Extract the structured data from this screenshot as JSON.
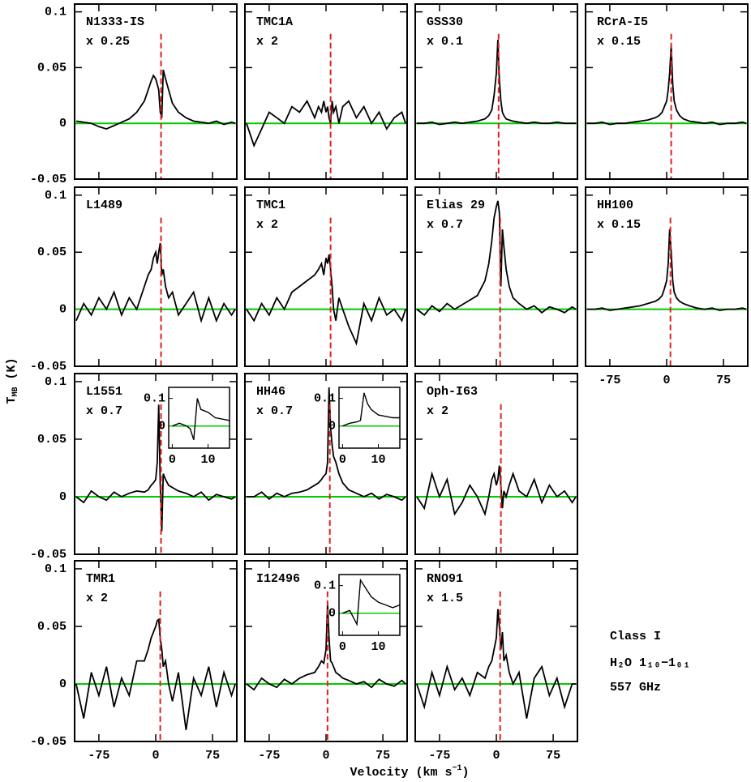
{
  "shared_axes": {
    "xlim": [
      -107,
      107
    ],
    "ylim": [
      -0.05,
      0.107
    ],
    "xticks": [
      -75,
      0,
      75
    ],
    "yticks": [
      0.1,
      0.05,
      0,
      -0.05
    ],
    "baseline_color": "#00cc00",
    "ylabel": {
      "main": "T",
      "sub": "MB",
      "unit": " (K)"
    },
    "xlabel": {
      "main": "Velocity (km s",
      "sup": "−1",
      "end": ")"
    }
  },
  "annotation": [
    "Class I",
    "H₂O 1₁₀−1₀₁",
    "557 GHz"
  ],
  "chart_data": [
    {
      "type": "line",
      "title": "N1333-IS",
      "subtitle": "x 0.25",
      "color": "#000000",
      "vline": {
        "x": 7,
        "color": "#e02020"
      },
      "x": [
        -105,
        -95,
        -85,
        -75,
        -65,
        -55,
        -45,
        -35,
        -25,
        -15,
        -10,
        -6,
        -3,
        0,
        2,
        4,
        6,
        8,
        10,
        13,
        17,
        22,
        30,
        40,
        50,
        60,
        70,
        80,
        90,
        100,
        105
      ],
      "values": [
        0.002,
        0.001,
        0.0,
        -0.003,
        -0.005,
        -0.002,
        0.001,
        0.004,
        0.01,
        0.02,
        0.03,
        0.038,
        0.043,
        0.04,
        0.035,
        0.03,
        0.01,
        0.005,
        0.048,
        0.04,
        0.03,
        0.018,
        0.01,
        0.005,
        0.002,
        0.001,
        0.0,
        0.002,
        -0.001,
        0.001,
        0.0
      ]
    },
    {
      "type": "line",
      "title": "TMC1A",
      "subtitle": "x 2",
      "color": "#000000",
      "vline": {
        "x": 6,
        "color": "#e02020"
      },
      "x": [
        -105,
        -95,
        -85,
        -75,
        -65,
        -55,
        -45,
        -35,
        -25,
        -15,
        -10,
        -6,
        -3,
        0,
        2,
        4,
        6,
        8,
        10,
        13,
        17,
        22,
        30,
        40,
        50,
        60,
        70,
        80,
        90,
        100,
        105
      ],
      "values": [
        0.0,
        -0.02,
        -0.005,
        0.01,
        0.005,
        0.0,
        0.015,
        0.01,
        0.02,
        0.005,
        0.015,
        0.01,
        0.02,
        0.01,
        0.015,
        0.005,
        0.0,
        0.02,
        0.01,
        0.015,
        0.0,
        0.015,
        0.02,
        0.005,
        0.015,
        0.0,
        0.01,
        -0.005,
        0.005,
        0.01,
        0.0
      ]
    },
    {
      "type": "line",
      "title": "GSS30",
      "subtitle": "x 0.1",
      "color": "#000000",
      "vline": {
        "x": 3,
        "color": "#e02020"
      },
      "x": [
        -105,
        -95,
        -85,
        -75,
        -65,
        -55,
        -45,
        -35,
        -25,
        -15,
        -10,
        -6,
        -3,
        0,
        2,
        4,
        6,
        8,
        10,
        13,
        17,
        22,
        30,
        40,
        50,
        60,
        70,
        80,
        90,
        100,
        105
      ],
      "values": [
        0.0,
        0.0,
        0.001,
        -0.001,
        0.0,
        0.001,
        0.0,
        0.001,
        0.002,
        0.004,
        0.007,
        0.012,
        0.025,
        0.045,
        0.075,
        0.04,
        0.02,
        0.01,
        0.007,
        0.004,
        0.003,
        0.002,
        0.001,
        0.0,
        0.001,
        0.0,
        0.0,
        0.001,
        0.0,
        0.0,
        0.0
      ]
    },
    {
      "type": "line",
      "title": "RCrA-I5",
      "subtitle": "x 0.15",
      "color": "#000000",
      "vline": {
        "x": 6,
        "color": "#e02020"
      },
      "x": [
        -105,
        -95,
        -85,
        -75,
        -65,
        -55,
        -45,
        -35,
        -25,
        -15,
        -10,
        -6,
        -3,
        0,
        2,
        4,
        6,
        8,
        10,
        13,
        17,
        22,
        30,
        40,
        50,
        60,
        70,
        80,
        90,
        100,
        105
      ],
      "values": [
        0.0,
        0.0,
        0.001,
        -0.001,
        0.0,
        0.0,
        0.001,
        0.002,
        0.003,
        0.005,
        0.007,
        0.01,
        0.015,
        0.02,
        0.03,
        0.045,
        0.07,
        0.035,
        0.02,
        0.012,
        0.007,
        0.004,
        0.002,
        0.001,
        0.0,
        0.001,
        -0.001,
        0.0,
        0.0,
        0.001,
        0.0
      ]
    },
    {
      "type": "line",
      "title": "L1489",
      "color": "#000000",
      "vline": {
        "x": 7,
        "color": "#e02020"
      },
      "x": [
        -105,
        -95,
        -85,
        -75,
        -65,
        -55,
        -45,
        -35,
        -25,
        -15,
        -10,
        -6,
        -3,
        0,
        2,
        4,
        6,
        8,
        10,
        13,
        17,
        22,
        30,
        40,
        50,
        60,
        70,
        80,
        90,
        100,
        105
      ],
      "values": [
        -0.01,
        0.005,
        -0.005,
        0.01,
        0.0,
        0.015,
        -0.005,
        0.01,
        0.0,
        0.02,
        0.03,
        0.035,
        0.045,
        0.05,
        0.04,
        0.05,
        0.058,
        0.03,
        0.035,
        0.02,
        0.01,
        0.015,
        -0.005,
        0.005,
        0.015,
        -0.01,
        0.01,
        -0.01,
        0.005,
        -0.005,
        0.0
      ]
    },
    {
      "type": "line",
      "title": "TMC1",
      "subtitle": "x 2",
      "color": "#000000",
      "vline": {
        "x": 6,
        "color": "#e02020"
      },
      "x": [
        -105,
        -95,
        -85,
        -75,
        -65,
        -55,
        -45,
        -35,
        -25,
        -15,
        -10,
        -6,
        -3,
        0,
        2,
        4,
        6,
        8,
        10,
        13,
        17,
        22,
        30,
        40,
        50,
        60,
        70,
        80,
        90,
        100,
        105
      ],
      "values": [
        0.0,
        -0.01,
        0.005,
        -0.005,
        0.01,
        0.0,
        0.015,
        0.02,
        0.025,
        0.03,
        0.035,
        0.04,
        0.03,
        0.045,
        0.04,
        0.048,
        0.035,
        0.02,
        0.0,
        -0.01,
        0.01,
        0.0,
        -0.015,
        -0.03,
        0.005,
        -0.01,
        0.01,
        -0.005,
        0.0,
        -0.01,
        0.0
      ]
    },
    {
      "type": "line",
      "title": "Elias 29",
      "subtitle": "x 0.7",
      "color": "#000000",
      "vline": {
        "x": 5,
        "color": "#e02020"
      },
      "x": [
        -105,
        -95,
        -85,
        -75,
        -65,
        -55,
        -45,
        -35,
        -25,
        -15,
        -10,
        -6,
        -3,
        0,
        2,
        4,
        6,
        8,
        10,
        13,
        17,
        22,
        30,
        40,
        50,
        60,
        70,
        80,
        90,
        100,
        105
      ],
      "values": [
        0.0,
        -0.005,
        0.003,
        -0.002,
        0.005,
        0.0,
        0.004,
        0.008,
        0.012,
        0.025,
        0.04,
        0.06,
        0.08,
        0.09,
        0.095,
        0.085,
        0.02,
        0.07,
        0.055,
        0.035,
        0.02,
        0.01,
        0.005,
        0.0,
        0.003,
        -0.003,
        0.002,
        0.0,
        -0.003,
        0.002,
        0.0
      ]
    },
    {
      "type": "line",
      "title": "HH100",
      "subtitle": "x 0.15",
      "color": "#000000",
      "vline": {
        "x": 5,
        "color": "#e02020"
      },
      "x": [
        -105,
        -95,
        -85,
        -75,
        -65,
        -55,
        -45,
        -35,
        -25,
        -15,
        -10,
        -6,
        -3,
        0,
        2,
        4,
        6,
        8,
        10,
        13,
        17,
        22,
        30,
        40,
        50,
        60,
        70,
        80,
        90,
        100,
        105
      ],
      "values": [
        0.0,
        0.0,
        0.001,
        -0.001,
        0.0,
        0.001,
        0.002,
        0.003,
        0.005,
        0.007,
        0.009,
        0.012,
        0.018,
        0.025,
        0.04,
        0.07,
        0.05,
        0.025,
        0.015,
        0.01,
        0.007,
        0.005,
        0.003,
        0.001,
        0.0,
        0.001,
        -0.001,
        0.0,
        0.0,
        0.001,
        0.0
      ]
    },
    {
      "type": "line",
      "title": "L1551",
      "subtitle": "x 0.7",
      "color": "#000000",
      "vline": {
        "x": 7,
        "color": "#e02020"
      },
      "x": [
        -105,
        -95,
        -85,
        -75,
        -65,
        -55,
        -45,
        -35,
        -25,
        -15,
        -10,
        -6,
        -3,
        0,
        2,
        4,
        6,
        8,
        10,
        13,
        17,
        22,
        30,
        40,
        50,
        60,
        70,
        80,
        90,
        100,
        105
      ],
      "values": [
        0.0,
        -0.005,
        0.005,
        0.0,
        -0.003,
        0.004,
        0.0,
        0.003,
        0.005,
        0.004,
        0.006,
        0.01,
        0.012,
        0.015,
        0.03,
        0.08,
        0.01,
        -0.03,
        0.02,
        0.015,
        0.01,
        0.008,
        0.005,
        0.003,
        0.0,
        0.004,
        -0.003,
        0.002,
        0.0,
        -0.002,
        0.0
      ],
      "inset": {
        "xlim": [
          -1,
          16
        ],
        "ylim": [
          -0.08,
          0.14
        ],
        "xticks": [
          0,
          10
        ],
        "yticks": [
          0.1,
          0
        ],
        "x": [
          0,
          2,
          4,
          5,
          6,
          7,
          8,
          10,
          12,
          14,
          16
        ],
        "values": [
          0.0,
          0.01,
          0.0,
          -0.01,
          -0.05,
          0.1,
          0.06,
          0.05,
          0.03,
          0.025,
          0.02
        ]
      }
    },
    {
      "type": "line",
      "title": "HH46",
      "subtitle": "x 0.7",
      "color": "#000000",
      "vline": {
        "x": 5,
        "color": "#e02020"
      },
      "x": [
        -105,
        -95,
        -85,
        -75,
        -65,
        -55,
        -45,
        -35,
        -25,
        -15,
        -10,
        -6,
        -3,
        0,
        2,
        4,
        6,
        8,
        10,
        13,
        17,
        22,
        30,
        40,
        50,
        60,
        70,
        80,
        90,
        100,
        105
      ],
      "values": [
        0.0,
        0.0,
        0.004,
        -0.002,
        0.003,
        0.0,
        0.003,
        0.004,
        0.006,
        0.01,
        0.012,
        0.015,
        0.018,
        0.02,
        0.03,
        0.095,
        0.06,
        0.045,
        0.035,
        0.03,
        0.02,
        0.012,
        0.006,
        0.003,
        0.0,
        0.003,
        -0.002,
        0.002,
        0.0,
        -0.003,
        0.0
      ],
      "inset": {
        "xlim": [
          -1,
          16
        ],
        "ylim": [
          -0.08,
          0.14
        ],
        "xticks": [
          0,
          10
        ],
        "yticks": [
          0.1,
          0
        ],
        "x": [
          0,
          2,
          4,
          5,
          6,
          7,
          8,
          10,
          12,
          14,
          16
        ],
        "values": [
          0.0,
          0.01,
          0.015,
          0.02,
          0.12,
          0.08,
          0.06,
          0.04,
          0.035,
          0.03,
          0.03
        ]
      }
    },
    {
      "type": "line",
      "title": "Oph-I63",
      "subtitle": "x 2",
      "color": "#000000",
      "vline": {
        "x": 6,
        "color": "#e02020"
      },
      "x": [
        -105,
        -95,
        -85,
        -75,
        -65,
        -55,
        -45,
        -35,
        -25,
        -15,
        -10,
        -6,
        -3,
        0,
        2,
        4,
        6,
        8,
        10,
        13,
        17,
        22,
        30,
        40,
        50,
        60,
        70,
        80,
        90,
        100,
        105
      ],
      "values": [
        0.0,
        -0.01,
        0.02,
        0.0,
        0.015,
        -0.015,
        -0.005,
        0.01,
        0.0,
        -0.015,
        0.0,
        0.015,
        0.02,
        0.01,
        0.015,
        0.027,
        0.01,
        -0.01,
        0.005,
        0.0,
        0.01,
        0.02,
        0.005,
        0.0,
        0.015,
        -0.005,
        0.01,
        0.0,
        0.005,
        -0.005,
        0.0
      ]
    },
    {
      "type": "line",
      "title": "TMR1",
      "subtitle": "x 2",
      "color": "#000000",
      "vline": {
        "x": 6,
        "color": "#e02020"
      },
      "x": [
        -105,
        -95,
        -85,
        -75,
        -65,
        -55,
        -45,
        -35,
        -25,
        -15,
        -10,
        -6,
        -3,
        0,
        2,
        4,
        6,
        8,
        10,
        13,
        17,
        22,
        30,
        40,
        50,
        60,
        70,
        80,
        90,
        100,
        105
      ],
      "values": [
        0.0,
        -0.03,
        0.01,
        -0.01,
        0.015,
        -0.02,
        0.005,
        -0.01,
        0.02,
        0.02,
        0.03,
        0.04,
        0.045,
        0.05,
        0.055,
        0.056,
        0.04,
        0.03,
        0.015,
        0.02,
        0.0,
        -0.015,
        0.01,
        -0.04,
        0.005,
        -0.01,
        0.015,
        -0.02,
        0.01,
        -0.01,
        0.0
      ]
    },
    {
      "type": "line",
      "title": "I12496",
      "color": "#000000",
      "vline": {
        "x": 2,
        "color": "#e02020"
      },
      "x": [
        -105,
        -95,
        -85,
        -75,
        -65,
        -55,
        -45,
        -35,
        -25,
        -15,
        -10,
        -6,
        -3,
        0,
        2,
        4,
        6,
        8,
        10,
        13,
        17,
        22,
        30,
        40,
        50,
        60,
        70,
        80,
        90,
        100,
        105
      ],
      "values": [
        0.0,
        -0.005,
        0.005,
        0.0,
        -0.003,
        0.004,
        0.0,
        0.005,
        0.008,
        0.01,
        0.015,
        0.02,
        0.018,
        0.03,
        0.07,
        0.04,
        0.02,
        0.018,
        0.015,
        0.01,
        0.008,
        0.005,
        0.003,
        0.0,
        0.002,
        -0.003,
        0.004,
        0.0,
        -0.002,
        0.003,
        0.0
      ],
      "inset": {
        "xlim": [
          -1,
          16
        ],
        "ylim": [
          -0.08,
          0.14
        ],
        "xticks": [
          0,
          10
        ],
        "yticks": [
          0.1,
          0
        ],
        "x": [
          0,
          2,
          4,
          5,
          6,
          7,
          8,
          10,
          12,
          14,
          16
        ],
        "values": [
          0.0,
          0.01,
          -0.04,
          0.12,
          0.1,
          0.08,
          0.06,
          0.04,
          0.03,
          0.02,
          0.03
        ]
      }
    },
    {
      "type": "line",
      "title": "RNO91",
      "subtitle": "x 1.5",
      "color": "#000000",
      "vline": {
        "x": 5,
        "color": "#e02020"
      },
      "x": [
        -105,
        -95,
        -85,
        -75,
        -65,
        -55,
        -45,
        -35,
        -25,
        -15,
        -10,
        -6,
        -3,
        0,
        2,
        4,
        6,
        8,
        10,
        13,
        17,
        22,
        30,
        40,
        50,
        60,
        70,
        80,
        90,
        100,
        105
      ],
      "values": [
        0.0,
        -0.02,
        0.01,
        -0.01,
        0.015,
        -0.005,
        0.005,
        -0.01,
        0.01,
        0.005,
        0.015,
        0.02,
        0.03,
        0.04,
        0.065,
        0.05,
        0.03,
        0.045,
        0.02,
        0.025,
        0.01,
        0.0,
        0.01,
        -0.03,
        0.005,
        0.015,
        -0.01,
        0.005,
        -0.02,
        0.0,
        0.0
      ]
    }
  ]
}
